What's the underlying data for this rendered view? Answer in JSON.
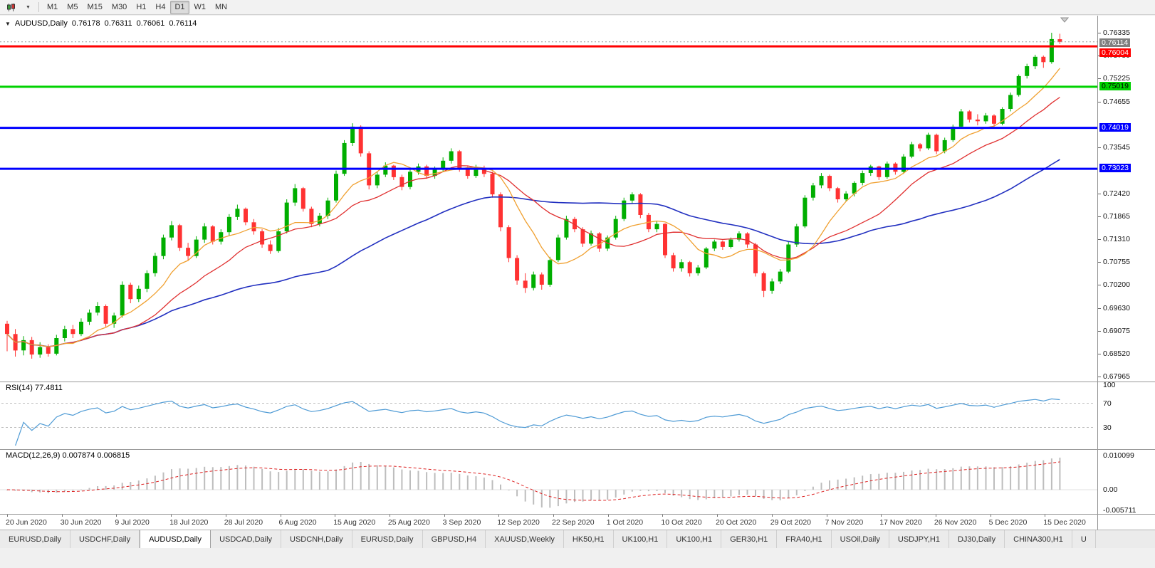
{
  "window": {
    "toolbar": {
      "timeframes": [
        "M1",
        "M5",
        "M15",
        "M30",
        "H1",
        "H4",
        "D1",
        "W1",
        "MN"
      ],
      "active_timeframe": "D1",
      "dropdown_caret": "▼"
    },
    "tabs": {
      "items": [
        "EURUSD,Daily",
        "USDCHF,Daily",
        "AUDUSD,Daily",
        "USDCAD,Daily",
        "USDCNH,Daily",
        "EURUSD,Daily",
        "GBPUSD,H4",
        "XAUUSD,Weekly",
        "HK50,H1",
        "UK100,H1",
        "UK100,H1",
        "GER30,H1",
        "FRA40,H1",
        "USOil,Daily",
        "USDJPY,H1",
        "DJ30,Daily",
        "CHINA300,H1",
        "U"
      ],
      "active_index": 2
    }
  },
  "chart": {
    "header": {
      "marker": "▼",
      "title": "AUDUSD,Daily",
      "open": "0.76178",
      "high": "0.76311",
      "low": "0.76061",
      "close": "0.76114"
    },
    "price_axis": {
      "ticks": [
        {
          "label": "0.76335",
          "price": 0.76335
        },
        {
          "label": "0.75780",
          "price": 0.7578
        },
        {
          "label": "0.75225",
          "price": 0.75225
        },
        {
          "label": "0.74655",
          "price": 0.74655
        },
        {
          "label": "0.73545",
          "price": 0.73545
        },
        {
          "label": "0.72420",
          "price": 0.7242
        },
        {
          "label": "0.71865",
          "price": 0.71865
        },
        {
          "label": "0.71310",
          "price": 0.7131
        },
        {
          "label": "0.70755",
          "price": 0.70755
        },
        {
          "label": "0.70200",
          "price": 0.702
        },
        {
          "label": "0.69630",
          "price": 0.6963
        },
        {
          "label": "0.69075",
          "price": 0.69075
        },
        {
          "label": "0.68520",
          "price": 0.6852
        },
        {
          "label": "0.67965",
          "price": 0.67965
        }
      ],
      "current_price": {
        "label": "0.76114",
        "price": 0.76114,
        "bg": "#808080",
        "fg": "#ffffff"
      }
    },
    "levels": [
      {
        "label": "0.76004",
        "price": 0.76004,
        "color": "#ff0000",
        "text_color": "#ffffff"
      },
      {
        "label": "0.75019",
        "price": 0.75019,
        "color": "#00d200",
        "text_color": "#000000"
      },
      {
        "label": "0.74019",
        "price": 0.74019,
        "color": "#0000ff",
        "text_color": "#ffffff"
      },
      {
        "label": "0.73023",
        "price": 0.73023,
        "color": "#0000ff",
        "text_color": "#ffffff"
      }
    ]
  },
  "chart_data": {
    "type": "candlestick",
    "symbol": "AUDUSD",
    "timeframe": "Daily",
    "ylim": [
      0.67965,
      0.76335
    ],
    "up_color": "#00ae00",
    "down_color": "#ff3232",
    "x_labels": [
      "20 Jun 2020",
      "30 Jun 2020",
      "9 Jul 2020",
      "18 Jul 2020",
      "28 Jul 2020",
      "6 Aug 2020",
      "15 Aug 2020",
      "25 Aug 2020",
      "3 Sep 2020",
      "12 Sep 2020",
      "22 Sep 2020",
      "1 Oct 2020",
      "10 Oct 2020",
      "20 Oct 2020",
      "29 Oct 2020",
      "7 Nov 2020",
      "17 Nov 2020",
      "26 Nov 2020",
      "5 Dec 2020",
      "15 Dec 2020"
    ],
    "moving_averages": [
      {
        "name": "fast",
        "period": 8,
        "color": "#f0a030"
      },
      {
        "name": "medium",
        "period": 16,
        "color": "#e03030"
      },
      {
        "name": "slow",
        "period": 40,
        "color": "#2230c0"
      }
    ],
    "candles": [
      [
        0.6925,
        0.6932,
        0.6858,
        0.69
      ],
      [
        0.69,
        0.6912,
        0.6845,
        0.686
      ],
      [
        0.686,
        0.6895,
        0.6848,
        0.6885
      ],
      [
        0.6885,
        0.6893,
        0.684,
        0.685
      ],
      [
        0.685,
        0.688,
        0.6842,
        0.6868
      ],
      [
        0.6868,
        0.6875,
        0.6845,
        0.6852
      ],
      [
        0.6852,
        0.6898,
        0.6848,
        0.689
      ],
      [
        0.689,
        0.692,
        0.6882,
        0.6912
      ],
      [
        0.6912,
        0.6922,
        0.689,
        0.69
      ],
      [
        0.69,
        0.6938,
        0.6895,
        0.693
      ],
      [
        0.693,
        0.696,
        0.6922,
        0.6952
      ],
      [
        0.6952,
        0.6978,
        0.6945,
        0.6968
      ],
      [
        0.6968,
        0.6972,
        0.6918,
        0.6925
      ],
      [
        0.6925,
        0.6952,
        0.6915,
        0.6945
      ],
      [
        0.6945,
        0.7028,
        0.694,
        0.702
      ],
      [
        0.702,
        0.7025,
        0.6975,
        0.6985
      ],
      [
        0.6985,
        0.7018,
        0.6978,
        0.701
      ],
      [
        0.701,
        0.7055,
        0.7002,
        0.7048
      ],
      [
        0.7048,
        0.7098,
        0.704,
        0.709
      ],
      [
        0.709,
        0.7142,
        0.7082,
        0.7135
      ],
      [
        0.7135,
        0.7175,
        0.7128,
        0.7165
      ],
      [
        0.7165,
        0.7168,
        0.7102,
        0.711
      ],
      [
        0.711,
        0.7122,
        0.7078,
        0.709
      ],
      [
        0.709,
        0.7138,
        0.7085,
        0.713
      ],
      [
        0.713,
        0.717,
        0.7122,
        0.7162
      ],
      [
        0.7162,
        0.7165,
        0.7118,
        0.7125
      ],
      [
        0.7125,
        0.7155,
        0.7118,
        0.7148
      ],
      [
        0.7148,
        0.7192,
        0.714,
        0.7185
      ],
      [
        0.7185,
        0.7215,
        0.7178,
        0.7205
      ],
      [
        0.7205,
        0.7208,
        0.7165,
        0.7172
      ],
      [
        0.7172,
        0.718,
        0.7142,
        0.715
      ],
      [
        0.715,
        0.7155,
        0.711,
        0.7118
      ],
      [
        0.7118,
        0.7128,
        0.7095,
        0.7102
      ],
      [
        0.7102,
        0.7158,
        0.7098,
        0.715
      ],
      [
        0.715,
        0.7228,
        0.7145,
        0.722
      ],
      [
        0.722,
        0.7265,
        0.7212,
        0.7255
      ],
      [
        0.7255,
        0.7258,
        0.7198,
        0.7205
      ],
      [
        0.7205,
        0.721,
        0.716,
        0.7168
      ],
      [
        0.7168,
        0.7195,
        0.7162,
        0.7188
      ],
      [
        0.7188,
        0.7232,
        0.718,
        0.7225
      ],
      [
        0.7225,
        0.7298,
        0.722,
        0.729
      ],
      [
        0.729,
        0.7372,
        0.7285,
        0.7365
      ],
      [
        0.7365,
        0.7413,
        0.7358,
        0.7405
      ],
      [
        0.7405,
        0.7408,
        0.7332,
        0.734
      ],
      [
        0.734,
        0.7345,
        0.7252,
        0.7262
      ],
      [
        0.7262,
        0.7295,
        0.7255,
        0.7288
      ],
      [
        0.7288,
        0.7318,
        0.7282,
        0.731
      ],
      [
        0.731,
        0.7312,
        0.7275,
        0.7282
      ],
      [
        0.7282,
        0.7288,
        0.725,
        0.7258
      ],
      [
        0.7258,
        0.7302,
        0.7252,
        0.7295
      ],
      [
        0.7295,
        0.7315,
        0.7288,
        0.7308
      ],
      [
        0.7308,
        0.7312,
        0.7278,
        0.7285
      ],
      [
        0.7285,
        0.7308,
        0.7278,
        0.73
      ],
      [
        0.73,
        0.733,
        0.7295,
        0.7322
      ],
      [
        0.7322,
        0.7352,
        0.7315,
        0.7345
      ],
      [
        0.7345,
        0.7348,
        0.7295,
        0.7302
      ],
      [
        0.7302,
        0.7308,
        0.7278,
        0.7285
      ],
      [
        0.7285,
        0.7312,
        0.728,
        0.7305
      ],
      [
        0.7305,
        0.731,
        0.7282,
        0.729
      ],
      [
        0.729,
        0.7295,
        0.7232,
        0.724
      ],
      [
        0.724,
        0.7245,
        0.715,
        0.716
      ],
      [
        0.716,
        0.7165,
        0.7075,
        0.7085
      ],
      [
        0.7085,
        0.7092,
        0.702,
        0.703
      ],
      [
        0.703,
        0.7048,
        0.7,
        0.7012
      ],
      [
        0.7012,
        0.7052,
        0.7006,
        0.7045
      ],
      [
        0.7045,
        0.705,
        0.7008,
        0.702
      ],
      [
        0.702,
        0.7088,
        0.7015,
        0.708
      ],
      [
        0.708,
        0.7142,
        0.7075,
        0.7135
      ],
      [
        0.7135,
        0.7188,
        0.713,
        0.718
      ],
      [
        0.718,
        0.7185,
        0.7148,
        0.7155
      ],
      [
        0.7155,
        0.716,
        0.7112,
        0.712
      ],
      [
        0.712,
        0.7152,
        0.7115,
        0.7145
      ],
      [
        0.7145,
        0.7148,
        0.71,
        0.7108
      ],
      [
        0.7108,
        0.714,
        0.7102,
        0.7135
      ],
      [
        0.7135,
        0.7188,
        0.713,
        0.718
      ],
      [
        0.718,
        0.7232,
        0.7175,
        0.7225
      ],
      [
        0.7225,
        0.7245,
        0.7218,
        0.724
      ],
      [
        0.724,
        0.7243,
        0.7182,
        0.719
      ],
      [
        0.719,
        0.7195,
        0.7148,
        0.7155
      ],
      [
        0.7155,
        0.7175,
        0.7148,
        0.7168
      ],
      [
        0.7168,
        0.717,
        0.7085,
        0.7092
      ],
      [
        0.7092,
        0.7098,
        0.7052,
        0.706
      ],
      [
        0.706,
        0.7082,
        0.7052,
        0.7075
      ],
      [
        0.7075,
        0.7078,
        0.704,
        0.7048
      ],
      [
        0.7048,
        0.7068,
        0.7042,
        0.7062
      ],
      [
        0.7062,
        0.7112,
        0.7058,
        0.7108
      ],
      [
        0.7108,
        0.713,
        0.7102,
        0.7125
      ],
      [
        0.7125,
        0.7128,
        0.7105,
        0.7112
      ],
      [
        0.7112,
        0.7135,
        0.7108,
        0.713
      ],
      [
        0.713,
        0.715,
        0.7125,
        0.7145
      ],
      [
        0.7145,
        0.7148,
        0.711,
        0.7118
      ],
      [
        0.7118,
        0.7122,
        0.704,
        0.7048
      ],
      [
        0.7048,
        0.7052,
        0.699,
        0.7005
      ],
      [
        0.7005,
        0.7035,
        0.6998,
        0.7028
      ],
      [
        0.7028,
        0.7058,
        0.7022,
        0.7052
      ],
      [
        0.7052,
        0.7125,
        0.7048,
        0.7118
      ],
      [
        0.7118,
        0.7168,
        0.7112,
        0.7162
      ],
      [
        0.7162,
        0.7238,
        0.7158,
        0.7232
      ],
      [
        0.7232,
        0.7268,
        0.7225,
        0.7262
      ],
      [
        0.7262,
        0.7292,
        0.7255,
        0.7285
      ],
      [
        0.7285,
        0.7288,
        0.7248,
        0.7255
      ],
      [
        0.7255,
        0.7258,
        0.722,
        0.7228
      ],
      [
        0.7228,
        0.7248,
        0.7222,
        0.7242
      ],
      [
        0.7242,
        0.7272,
        0.7235,
        0.7268
      ],
      [
        0.7268,
        0.7298,
        0.7262,
        0.7292
      ],
      [
        0.7292,
        0.7312,
        0.7285,
        0.7308
      ],
      [
        0.7308,
        0.731,
        0.7275,
        0.7282
      ],
      [
        0.7282,
        0.732,
        0.7278,
        0.7315
      ],
      [
        0.7315,
        0.7318,
        0.7288,
        0.7295
      ],
      [
        0.7295,
        0.7338,
        0.729,
        0.7332
      ],
      [
        0.7332,
        0.7368,
        0.7328,
        0.7362
      ],
      [
        0.7362,
        0.7365,
        0.7345,
        0.7352
      ],
      [
        0.7352,
        0.739,
        0.7348,
        0.7385
      ],
      [
        0.7385,
        0.7388,
        0.7338,
        0.7345
      ],
      [
        0.7345,
        0.7378,
        0.734,
        0.7372
      ],
      [
        0.7372,
        0.741,
        0.7368,
        0.7405
      ],
      [
        0.7405,
        0.7448,
        0.74,
        0.7442
      ],
      [
        0.7442,
        0.7445,
        0.7415,
        0.7422
      ],
      [
        0.7422,
        0.7435,
        0.7408,
        0.7418
      ],
      [
        0.7418,
        0.7438,
        0.7412,
        0.7432
      ],
      [
        0.7432,
        0.7435,
        0.7405,
        0.7412
      ],
      [
        0.7412,
        0.7452,
        0.7408,
        0.7448
      ],
      [
        0.7448,
        0.7488,
        0.7442,
        0.7482
      ],
      [
        0.7482,
        0.7532,
        0.7478,
        0.7528
      ],
      [
        0.7528,
        0.7558,
        0.7522,
        0.7552
      ],
      [
        0.7552,
        0.758,
        0.7545,
        0.7575
      ],
      [
        0.7575,
        0.7578,
        0.7548,
        0.7562
      ],
      [
        0.7562,
        0.76335,
        0.7558,
        0.7618
      ],
      [
        0.76178,
        0.76311,
        0.76061,
        0.76114
      ]
    ]
  },
  "rsi": {
    "label": "RSI(14) 77.4811",
    "period": 14,
    "value": 77.4811,
    "levels": [
      70,
      30
    ],
    "line_color": "#4f9bd5",
    "axis_labels": [
      {
        "label": "100",
        "value": 100
      },
      {
        "label": "70",
        "value": 70
      },
      {
        "label": "30",
        "value": 30
      }
    ]
  },
  "macd": {
    "label": "MACD(12,26,9) 0.007874 0.006815",
    "fast": 12,
    "slow": 26,
    "signal": 9,
    "macd_value": 0.007874,
    "signal_value": 0.006815,
    "histogram_color": "#bdbdbd",
    "signal_color": "#dd2222",
    "axis_labels": [
      {
        "label": "0.010099",
        "value": 0.010099
      },
      {
        "label": "0.00",
        "value": 0
      },
      {
        "label": "-0.005711",
        "value": -0.005711
      }
    ]
  }
}
